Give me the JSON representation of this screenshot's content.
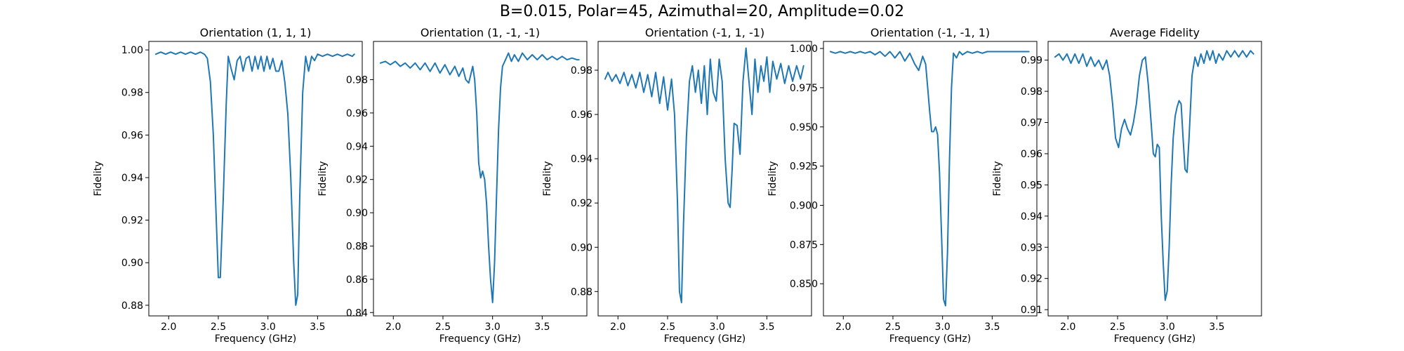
{
  "figure": {
    "suptitle": "B=0.015, Polar=45, Azimuthal=20, Amplitude=0.02"
  },
  "chart_data": [
    {
      "type": "line",
      "title": "Orientation (1, 1, 1)",
      "xlabel": "Frequency (GHz)",
      "ylabel": "Fidelity",
      "xlim": [
        1.8,
        3.95
      ],
      "ylim": [
        0.875,
        1.004
      ],
      "xticks": [
        2.0,
        2.5,
        3.0,
        3.5
      ],
      "xtick_labels": [
        "2.0",
        "2.5",
        "3.0",
        "3.5"
      ],
      "yticks": [
        0.88,
        0.9,
        0.92,
        0.94,
        0.96,
        0.98,
        1.0
      ],
      "ytick_labels": [
        "0.88",
        "0.90",
        "0.92",
        "0.94",
        "0.96",
        "0.98",
        "1.00"
      ],
      "color": "#1f77b4",
      "x": [
        1.87,
        1.92,
        1.97,
        2.02,
        2.07,
        2.12,
        2.17,
        2.22,
        2.27,
        2.32,
        2.36,
        2.39,
        2.42,
        2.45,
        2.48,
        2.5,
        2.52,
        2.55,
        2.58,
        2.6,
        2.63,
        2.66,
        2.69,
        2.72,
        2.75,
        2.78,
        2.81,
        2.84,
        2.87,
        2.9,
        2.93,
        2.96,
        2.99,
        3.02,
        3.05,
        3.08,
        3.11,
        3.14,
        3.17,
        3.2,
        3.23,
        3.26,
        3.28,
        3.3,
        3.32,
        3.35,
        3.38,
        3.41,
        3.44,
        3.47,
        3.5,
        3.55,
        3.6,
        3.65,
        3.7,
        3.75,
        3.8,
        3.85,
        3.87
      ],
      "y": [
        0.998,
        0.999,
        0.998,
        0.999,
        0.998,
        0.999,
        0.998,
        0.999,
        0.998,
        0.999,
        0.998,
        0.996,
        0.985,
        0.96,
        0.92,
        0.893,
        0.893,
        0.93,
        0.975,
        0.997,
        0.991,
        0.986,
        0.995,
        0.997,
        0.99,
        0.996,
        0.997,
        0.99,
        0.997,
        0.991,
        0.997,
        0.99,
        0.997,
        0.991,
        0.996,
        0.99,
        0.99,
        0.995,
        0.985,
        0.97,
        0.94,
        0.9,
        0.88,
        0.885,
        0.93,
        0.98,
        0.997,
        0.99,
        0.997,
        0.995,
        0.998,
        0.997,
        0.998,
        0.997,
        0.998,
        0.997,
        0.998,
        0.997,
        0.998
      ]
    },
    {
      "type": "line",
      "title": "Orientation (1, -1, -1)",
      "xlabel": "Frequency (GHz)",
      "ylabel": "Fidelity",
      "xlim": [
        1.8,
        3.95
      ],
      "ylim": [
        0.838,
        1.003
      ],
      "xticks": [
        2.0,
        2.5,
        3.0,
        3.5
      ],
      "xtick_labels": [
        "2.0",
        "2.5",
        "3.0",
        "3.5"
      ],
      "yticks": [
        0.84,
        0.86,
        0.88,
        0.9,
        0.92,
        0.94,
        0.96,
        0.98
      ],
      "ytick_labels": [
        "0.84",
        "0.86",
        "0.88",
        "0.90",
        "0.92",
        "0.94",
        "0.96",
        "0.98"
      ],
      "color": "#1f77b4",
      "x": [
        1.87,
        1.92,
        1.97,
        2.02,
        2.07,
        2.12,
        2.17,
        2.22,
        2.27,
        2.32,
        2.37,
        2.42,
        2.47,
        2.52,
        2.57,
        2.62,
        2.66,
        2.7,
        2.73,
        2.76,
        2.78,
        2.8,
        2.82,
        2.84,
        2.86,
        2.88,
        2.9,
        2.92,
        2.94,
        2.96,
        2.98,
        3.0,
        3.02,
        3.04,
        3.06,
        3.08,
        3.1,
        3.13,
        3.16,
        3.19,
        3.22,
        3.26,
        3.3,
        3.35,
        3.4,
        3.45,
        3.5,
        3.55,
        3.6,
        3.65,
        3.7,
        3.75,
        3.8,
        3.85,
        3.87
      ],
      "y": [
        0.99,
        0.991,
        0.989,
        0.991,
        0.988,
        0.99,
        0.987,
        0.99,
        0.986,
        0.99,
        0.985,
        0.99,
        0.984,
        0.989,
        0.983,
        0.988,
        0.982,
        0.987,
        0.98,
        0.978,
        0.983,
        0.988,
        0.98,
        0.96,
        0.93,
        0.921,
        0.925,
        0.92,
        0.905,
        0.88,
        0.86,
        0.846,
        0.87,
        0.91,
        0.95,
        0.975,
        0.988,
        0.992,
        0.996,
        0.991,
        0.995,
        0.991,
        0.996,
        0.992,
        0.995,
        0.992,
        0.995,
        0.992,
        0.994,
        0.992,
        0.994,
        0.992,
        0.993,
        0.992,
        0.992
      ]
    },
    {
      "type": "line",
      "title": "Orientation (-1, 1, -1)",
      "xlabel": "Frequency (GHz)",
      "ylabel": "Fidelity",
      "xlim": [
        1.8,
        3.95
      ],
      "ylim": [
        0.869,
        0.993
      ],
      "xticks": [
        2.0,
        2.5,
        3.0,
        3.5
      ],
      "xtick_labels": [
        "2.0",
        "2.5",
        "3.0",
        "3.5"
      ],
      "yticks": [
        0.88,
        0.9,
        0.92,
        0.94,
        0.96,
        0.98
      ],
      "ytick_labels": [
        "0.88",
        "0.90",
        "0.92",
        "0.94",
        "0.96",
        "0.98"
      ],
      "color": "#1f77b4",
      "x": [
        1.87,
        1.9,
        1.94,
        1.98,
        2.02,
        2.06,
        2.1,
        2.14,
        2.18,
        2.22,
        2.26,
        2.3,
        2.34,
        2.38,
        2.42,
        2.46,
        2.5,
        2.54,
        2.57,
        2.6,
        2.62,
        2.64,
        2.66,
        2.69,
        2.72,
        2.75,
        2.78,
        2.81,
        2.84,
        2.87,
        2.9,
        2.93,
        2.96,
        2.99,
        3.02,
        3.05,
        3.08,
        3.11,
        3.13,
        3.15,
        3.17,
        3.2,
        3.23,
        3.26,
        3.29,
        3.32,
        3.35,
        3.38,
        3.41,
        3.44,
        3.47,
        3.5,
        3.53,
        3.56,
        3.6,
        3.64,
        3.68,
        3.72,
        3.76,
        3.8,
        3.84,
        3.87
      ],
      "y": [
        0.976,
        0.979,
        0.975,
        0.978,
        0.974,
        0.979,
        0.973,
        0.978,
        0.972,
        0.979,
        0.97,
        0.978,
        0.968,
        0.979,
        0.965,
        0.977,
        0.962,
        0.976,
        0.96,
        0.92,
        0.88,
        0.875,
        0.91,
        0.95,
        0.975,
        0.982,
        0.97,
        0.98,
        0.965,
        0.982,
        0.96,
        0.985,
        0.97,
        0.966,
        0.985,
        0.975,
        0.94,
        0.92,
        0.918,
        0.935,
        0.956,
        0.955,
        0.942,
        0.975,
        0.99,
        0.975,
        0.96,
        0.985,
        0.97,
        0.982,
        0.975,
        0.986,
        0.97,
        0.984,
        0.976,
        0.983,
        0.974,
        0.982,
        0.975,
        0.982,
        0.976,
        0.982
      ]
    },
    {
      "type": "line",
      "title": "Orientation (-1, -1, 1)",
      "xlabel": "Frequency (GHz)",
      "ylabel": "Fidelity",
      "xlim": [
        1.8,
        3.95
      ],
      "ylim": [
        0.8295,
        1.0045
      ],
      "xticks": [
        2.0,
        2.5,
        3.0,
        3.5
      ],
      "xtick_labels": [
        "2.0",
        "2.5",
        "3.0",
        "3.5"
      ],
      "yticks": [
        0.85,
        0.875,
        0.9,
        0.925,
        0.95,
        0.975,
        1.0
      ],
      "ytick_labels": [
        "0.850",
        "0.875",
        "0.900",
        "0.925",
        "0.950",
        "0.975",
        "1.000"
      ],
      "color": "#1f77b4",
      "x": [
        1.87,
        1.92,
        1.97,
        2.02,
        2.07,
        2.12,
        2.17,
        2.22,
        2.27,
        2.32,
        2.37,
        2.42,
        2.47,
        2.52,
        2.57,
        2.62,
        2.67,
        2.72,
        2.76,
        2.8,
        2.83,
        2.85,
        2.87,
        2.89,
        2.91,
        2.93,
        2.95,
        2.97,
        2.99,
        3.01,
        3.03,
        3.05,
        3.07,
        3.09,
        3.11,
        3.14,
        3.17,
        3.2,
        3.25,
        3.3,
        3.35,
        3.4,
        3.45,
        3.5,
        3.55,
        3.6,
        3.65,
        3.7,
        3.75,
        3.8,
        3.85,
        3.87
      ],
      "y": [
        0.998,
        0.997,
        0.998,
        0.997,
        0.998,
        0.997,
        0.998,
        0.997,
        0.998,
        0.996,
        0.998,
        0.995,
        0.998,
        0.994,
        0.998,
        0.992,
        0.997,
        0.99,
        0.986,
        0.995,
        0.99,
        0.975,
        0.96,
        0.947,
        0.947,
        0.95,
        0.945,
        0.92,
        0.88,
        0.84,
        0.836,
        0.87,
        0.93,
        0.975,
        0.997,
        0.994,
        0.998,
        0.996,
        0.998,
        0.997,
        0.998,
        0.997,
        0.998,
        0.998,
        0.998,
        0.998,
        0.998,
        0.998,
        0.998,
        0.998,
        0.998,
        0.998
      ]
    },
    {
      "type": "line",
      "title": "Average Fidelity",
      "xlabel": "Frequency (GHz)",
      "ylabel": "Fidelity",
      "xlim": [
        1.8,
        3.95
      ],
      "ylim": [
        0.908,
        0.996
      ],
      "xticks": [
        2.0,
        2.5,
        3.0,
        3.5
      ],
      "xtick_labels": [
        "2.0",
        "2.5",
        "3.0",
        "3.5"
      ],
      "yticks": [
        0.91,
        0.92,
        0.93,
        0.94,
        0.95,
        0.96,
        0.97,
        0.98,
        0.99
      ],
      "ytick_labels": [
        "0.91",
        "0.92",
        "0.93",
        "0.94",
        "0.95",
        "0.96",
        "0.97",
        "0.98",
        "0.99"
      ],
      "color": "#1f77b4",
      "x": [
        1.87,
        1.91,
        1.95,
        1.99,
        2.03,
        2.07,
        2.11,
        2.15,
        2.19,
        2.23,
        2.27,
        2.31,
        2.35,
        2.39,
        2.42,
        2.45,
        2.48,
        2.51,
        2.54,
        2.57,
        2.6,
        2.63,
        2.66,
        2.69,
        2.72,
        2.75,
        2.78,
        2.81,
        2.84,
        2.86,
        2.88,
        2.9,
        2.92,
        2.94,
        2.96,
        2.98,
        3.0,
        3.02,
        3.04,
        3.06,
        3.08,
        3.1,
        3.12,
        3.14,
        3.16,
        3.18,
        3.2,
        3.22,
        3.25,
        3.28,
        3.31,
        3.34,
        3.37,
        3.4,
        3.43,
        3.46,
        3.49,
        3.52,
        3.56,
        3.6,
        3.64,
        3.68,
        3.72,
        3.76,
        3.8,
        3.84,
        3.87
      ],
      "y": [
        0.991,
        0.992,
        0.99,
        0.992,
        0.989,
        0.992,
        0.989,
        0.992,
        0.988,
        0.991,
        0.988,
        0.99,
        0.987,
        0.99,
        0.985,
        0.976,
        0.965,
        0.962,
        0.968,
        0.971,
        0.968,
        0.966,
        0.97,
        0.976,
        0.985,
        0.99,
        0.991,
        0.982,
        0.969,
        0.96,
        0.959,
        0.963,
        0.962,
        0.94,
        0.925,
        0.913,
        0.916,
        0.93,
        0.95,
        0.965,
        0.972,
        0.975,
        0.977,
        0.976,
        0.965,
        0.955,
        0.954,
        0.965,
        0.985,
        0.991,
        0.988,
        0.992,
        0.989,
        0.993,
        0.99,
        0.993,
        0.989,
        0.992,
        0.99,
        0.993,
        0.991,
        0.993,
        0.991,
        0.993,
        0.991,
        0.993,
        0.992
      ]
    }
  ]
}
